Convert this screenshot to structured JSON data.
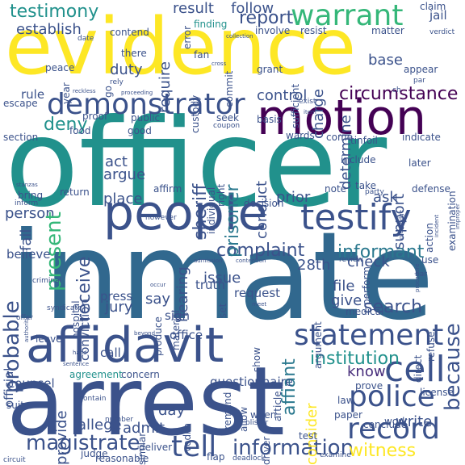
{
  "palette": {
    "yellow": "#fde725",
    "green_light": "#5ec962",
    "green": "#35b779",
    "teal": "#21918c",
    "blue_teal": "#2a788e",
    "blue": "#31688e",
    "indigo": "#3b528b",
    "purple_blue": "#443983",
    "purple": "#440154",
    "dark_purple": "#472d7b"
  },
  "words": {
    "officer": "officer",
    "inmate": "inmate",
    "arrest": "arrest",
    "evidence": "evidence",
    "affidavit": "affidavit",
    "people": "people",
    "motion": "motion",
    "testify": "testify",
    "warrant": "warrant",
    "demonstrator": "demonstrator",
    "statement": "statement",
    "cell": "cell",
    "police": "police",
    "record": "record",
    "tell": "tell",
    "information": "information",
    "magistrate": "magistrate",
    "testimony": "testimony",
    "informant": "informant",
    "complaint": "complaint",
    "present": "present",
    "probable": "probable",
    "because": "because",
    "receive": "receive",
    "sheriff": "sheriff",
    "prisoner": "prisoner",
    "jury": "jury",
    "witness": "witness",
    "deny": "deny",
    "establish": "establish",
    "act": "act",
    "argue": "argue",
    "place": "place",
    "affiant": "affiant",
    "search": "search",
    "file": "file",
    "check": "check",
    "institution": "institution",
    "know": "know",
    "write": "write",
    "consider": "consider",
    "admit": "admit",
    "allege": "allege",
    "issue": "issue",
    "circumstance": "circumstance",
    "control": "control",
    "report": "report",
    "result": "result",
    "follow": "follow",
    "require": "require",
    "duty": "duty",
    "base": "base",
    "charge": "charge",
    "determine": "determine",
    "conduct": "conduct",
    "hearing": "hearing",
    "prior": "prior",
    "ask": "ask",
    "support": "support",
    "person": "person",
    "fail": "fail",
    "28th": "28th",
    "give": "give",
    "say": "say",
    "provide": "provide",
    "day": "day",
    "counsel": "counsel",
    "agreement": "agreement",
    "concern": "concern",
    "questionnaire": "questionnaire",
    "truth": "truth",
    "request": "request",
    "sign": "sign",
    "press": "press",
    "official": "official",
    "believe": "believe",
    "rule": "rule",
    "peace": "peace",
    "escape": "escape",
    "proof": "proof",
    "food": "food",
    "good": "good",
    "public": "public",
    "seek": "seek",
    "section": "section",
    "bring": "bring",
    "inform": "inform",
    "return": "return",
    "affirm": "affirm",
    "decision": "decision",
    "however": "however",
    "there": "there",
    "fan": "fan",
    "grant": "grant",
    "sufficient": "sufficient",
    "finding": "finding",
    "error": "error",
    "contend": "contend",
    "involve": "involve",
    "resist": "resist",
    "matter": "matter",
    "claim": "claim",
    "jail": "jail",
    "appear": "appear",
    "indicate": "indicate",
    "include": "include",
    "come": "come",
    "tinfoil": "tinfoil",
    "wards": "wards'",
    "basis": "basis",
    "note": "note",
    "take": "take",
    "later": "later",
    "defense": "defense",
    "action": "action",
    "use": "use",
    "medical": "medical",
    "argument": "argument",
    "office": "office",
    "call": "call",
    "leave": "leave",
    "set": "set",
    "material": "material",
    "produce": "produce",
    "deliver": "deliver",
    "judge": "judge",
    "similar": "similar",
    "reasonable": "reasonable",
    "flap": "flap",
    "deadlock": "deadlock",
    "driver": "driver",
    "examine": "examine",
    "vodka": "vodka",
    "when": "when",
    "allow": "allow",
    "test": "test",
    "paper": "paper",
    "work": "work",
    "conclude": "conclude",
    "law": "law",
    "license": "license",
    "prove": "prove",
    "direct": "direct",
    "refuse": "refuse",
    "article": "article",
    "remand": "remand",
    "show": "show",
    "suite": "suite",
    "blister": "blister",
    "contain": "contain",
    "number": "number",
    "circuit": "circuit",
    "conviction": "conviction",
    "hospital": "hospital",
    "custody": "custody",
    "coupon": "coupon",
    "commit": "commit",
    "par": "par",
    "ch": "ch",
    "exist": "exist",
    "perform": "perform",
    "review": "review",
    "bar": "bar",
    "examination": "examination",
    "date": "date",
    "year": "year",
    "go": "go",
    "rely": "rely",
    "right": "right",
    "individual": "individual",
    "party": "party",
    "procedure": "procedure",
    "knowledge": "knowledge",
    "incident": "incident",
    "improper": "improper",
    "verdict": "verdict",
    "syndicate": "syndicate",
    "criminal": "criminal",
    "authority": "authority",
    "offer": "offer",
    "proceeding": "proceeding",
    "reckless": "reckless",
    "collection": "collection",
    "cross": "cross",
    "item": "item",
    "stanzas": "stanzas",
    "occur": "occur",
    "meet": "meet",
    "contention": "contention",
    "admission": "admission",
    "beyond": "beyond",
    "hand": "hand",
    "sentence": "sentence"
  }
}
